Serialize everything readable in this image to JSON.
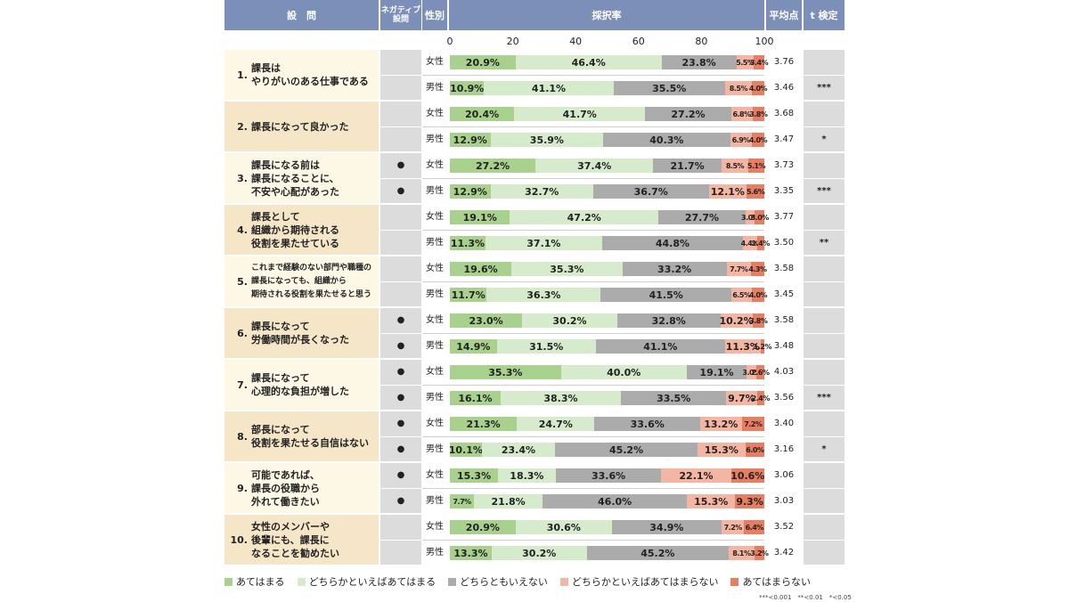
{
  "header": {
    "question": "設　問",
    "negative": "ネガティブ\n設問",
    "gender": "性別",
    "rate": "採択率",
    "mean": "平均点",
    "ttest": "t 検定"
  },
  "colors": {
    "seg0": "#a9d18e",
    "seg1": "#d6ebcc",
    "seg2": "#ababab",
    "seg3": "#f4b6a2",
    "seg4": "#e97d61",
    "header": "#7c8fb8"
  },
  "negative_mark": "●",
  "chart_data": {
    "type": "bar",
    "orientation": "horizontal-stacked-100",
    "xlim": [
      0,
      100
    ],
    "x_ticks": [
      "0",
      "20",
      "40",
      "60",
      "80",
      "100"
    ],
    "series_names": [
      "あてはまる",
      "どちらかといえばあてはまる",
      "どちらともいえない",
      "どちらかといえばあてはまらない",
      "あてはまらない"
    ],
    "questions": [
      {
        "num": "1.",
        "text": "課長は\nやりがいのある仕事である",
        "negative": false,
        "rows": [
          {
            "gender": "女性",
            "values": [
              20.9,
              46.4,
              23.8,
              5.5,
              3.4
            ],
            "labels": [
              "20.9%",
              "46.4%",
              "23.8%",
              "5.5%",
              "3.4%"
            ],
            "mean": "3.76",
            "t": ""
          },
          {
            "gender": "男性",
            "values": [
              10.9,
              41.1,
              35.5,
              8.5,
              4.0
            ],
            "labels": [
              "10.9%",
              "41.1%",
              "35.5%",
              "8.5%",
              "4.0%"
            ],
            "mean": "3.46",
            "t": "***"
          }
        ]
      },
      {
        "num": "2.",
        "text": "課長になって良かった",
        "negative": false,
        "rows": [
          {
            "gender": "女性",
            "values": [
              20.4,
              41.7,
              27.2,
              6.8,
              3.8
            ],
            "labels": [
              "20.4%",
              "41.7%",
              "27.2%",
              "6.8%",
              "3.8%"
            ],
            "mean": "3.68",
            "t": ""
          },
          {
            "gender": "男性",
            "values": [
              12.9,
              35.9,
              40.3,
              6.9,
              4.0
            ],
            "labels": [
              "12.9%",
              "35.9%",
              "40.3%",
              "6.9%",
              "4.0%"
            ],
            "mean": "3.47",
            "t": "*"
          }
        ]
      },
      {
        "num": "3.",
        "text": "課長になる前は\n課長になることに、\n不安や心配があった",
        "negative": true,
        "rows": [
          {
            "gender": "女性",
            "values": [
              27.2,
              37.4,
              21.7,
              8.5,
              5.1
            ],
            "labels": [
              "27.2%",
              "37.4%",
              "21.7%",
              "8.5%",
              "5.1%"
            ],
            "mean": "3.73",
            "t": ""
          },
          {
            "gender": "男性",
            "values": [
              12.9,
              32.7,
              36.7,
              12.1,
              5.6
            ],
            "labels": [
              "12.9%",
              "32.7%",
              "36.7%",
              "12.1%",
              "5.6%"
            ],
            "mean": "3.35",
            "t": "***"
          }
        ]
      },
      {
        "num": "4.",
        "text": "課長として\n組織から期待される\n役割を果たせている",
        "negative": false,
        "rows": [
          {
            "gender": "女性",
            "values": [
              19.1,
              47.2,
              27.7,
              3.0,
              3.0
            ],
            "labels": [
              "19.1%",
              "47.2%",
              "27.7%",
              "3.0%",
              "3.0%"
            ],
            "mean": "3.77",
            "t": ""
          },
          {
            "gender": "男性",
            "values": [
              11.3,
              37.1,
              44.8,
              4.4,
              2.4
            ],
            "labels": [
              "11.3%",
              "37.1%",
              "44.8%",
              "4.4%",
              "2.4%"
            ],
            "mean": "3.50",
            "t": "**"
          }
        ]
      },
      {
        "num": "5.",
        "text": "これまで経験のない部門や職種の\n課長になっても、組織から\n期待される役割を果たせると思う",
        "negative": false,
        "small": true,
        "rows": [
          {
            "gender": "女性",
            "values": [
              19.6,
              35.3,
              33.2,
              7.7,
              4.3
            ],
            "labels": [
              "19.6%",
              "35.3%",
              "33.2%",
              "7.7%",
              "4.3%"
            ],
            "mean": "3.58",
            "t": ""
          },
          {
            "gender": "男性",
            "values": [
              11.7,
              36.3,
              41.5,
              6.5,
              4.0
            ],
            "labels": [
              "11.7%",
              "36.3%",
              "41.5%",
              "6.5%",
              "4.0%"
            ],
            "mean": "3.45",
            "t": ""
          }
        ]
      },
      {
        "num": "6.",
        "text": "課長になって\n労働時間が長くなった",
        "negative": true,
        "rows": [
          {
            "gender": "女性",
            "values": [
              23.0,
              30.2,
              32.8,
              10.2,
              3.8
            ],
            "labels": [
              "23.0%",
              "30.2%",
              "32.8%",
              "10.2%",
              "3.8%"
            ],
            "mean": "3.58",
            "t": ""
          },
          {
            "gender": "男性",
            "values": [
              14.9,
              31.5,
              41.1,
              11.3,
              1.2
            ],
            "labels": [
              "14.9%",
              "31.5%",
              "41.1%",
              "11.3%",
              "1.2%"
            ],
            "mean": "3.48",
            "t": ""
          }
        ]
      },
      {
        "num": "7.",
        "text": "課長になって\n心理的な負担が増した",
        "negative": true,
        "rows": [
          {
            "gender": "女性",
            "values": [
              35.3,
              40.0,
              19.1,
              3.0,
              2.6
            ],
            "labels": [
              "35.3%",
              "40.0%",
              "19.1%",
              "3.0%",
              "2.6%"
            ],
            "mean": "4.03",
            "t": ""
          },
          {
            "gender": "男性",
            "values": [
              16.1,
              38.3,
              33.5,
              9.7,
              2.4
            ],
            "labels": [
              "16.1%",
              "38.3%",
              "33.5%",
              "9.7%",
              "2.4%"
            ],
            "mean": "3.56",
            "t": "***"
          }
        ]
      },
      {
        "num": "8.",
        "text": "部長になって\n役割を果たせる自信はない",
        "negative": true,
        "rows": [
          {
            "gender": "女性",
            "values": [
              21.3,
              24.7,
              33.6,
              13.2,
              7.2
            ],
            "labels": [
              "21.3%",
              "24.7%",
              "33.6%",
              "13.2%",
              "7.2%"
            ],
            "mean": "3.40",
            "t": ""
          },
          {
            "gender": "男性",
            "values": [
              10.1,
              23.4,
              45.2,
              15.3,
              6.0
            ],
            "labels": [
              "10.1%",
              "23.4%",
              "45.2%",
              "15.3%",
              "6.0%"
            ],
            "mean": "3.16",
            "t": "*"
          }
        ]
      },
      {
        "num": "9.",
        "text": "可能であれば、\n課長の役職から\n外れて働きたい",
        "negative": true,
        "rows": [
          {
            "gender": "女性",
            "values": [
              15.3,
              18.3,
              33.6,
              22.1,
              10.6
            ],
            "labels": [
              "15.3%",
              "18.3%",
              "33.6%",
              "22.1%",
              "10.6%"
            ],
            "mean": "3.06",
            "t": ""
          },
          {
            "gender": "男性",
            "values": [
              7.7,
              21.8,
              46.0,
              15.3,
              9.3
            ],
            "labels": [
              "7.7%",
              "21.8%",
              "46.0%",
              "15.3%",
              "9.3%"
            ],
            "mean": "3.03",
            "t": ""
          }
        ]
      },
      {
        "num": "10.",
        "text": "女性のメンバーや\n後輩にも、課長に\nなることを勧めたい",
        "negative": false,
        "rows": [
          {
            "gender": "女性",
            "values": [
              20.9,
              30.6,
              34.9,
              7.2,
              6.4
            ],
            "labels": [
              "20.9%",
              "30.6%",
              "34.9%",
              "7.2%",
              "6.4%"
            ],
            "mean": "3.52",
            "t": ""
          },
          {
            "gender": "男性",
            "values": [
              13.3,
              30.2,
              45.2,
              8.1,
              3.2
            ],
            "labels": [
              "13.3%",
              "30.2%",
              "45.2%",
              "8.1%",
              "3.2%"
            ],
            "mean": "3.42",
            "t": ""
          }
        ]
      }
    ]
  },
  "footnote": "***<0.001　**<0.01　*<0.05"
}
